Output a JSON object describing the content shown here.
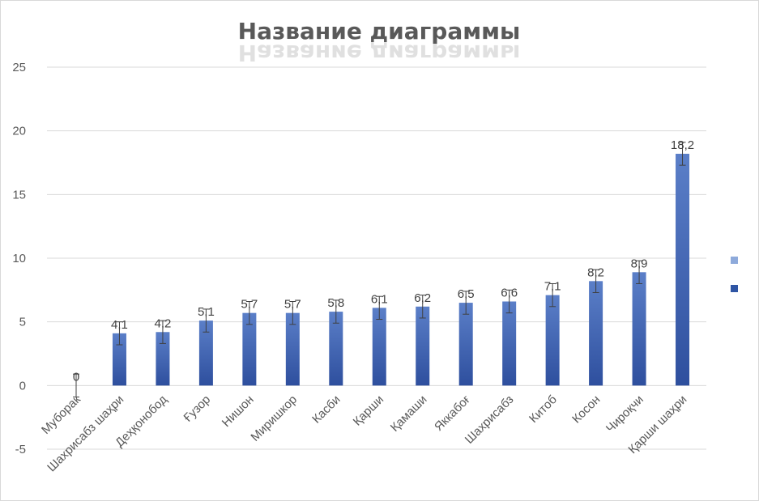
{
  "chart_data": {
    "type": "bar",
    "title": "Название диаграммы",
    "xlabel": "",
    "ylabel": "",
    "ylim": [
      -5,
      25
    ],
    "yticks": [
      -5,
      0,
      5,
      10,
      15,
      20,
      25
    ],
    "grid": true,
    "legend_position": "right",
    "error_bars": true,
    "categories": [
      "Муборак",
      "Шахрисабз шаҳри",
      "Деҳқонобод",
      "Ғузор",
      "Нишон",
      "Миришкор",
      "Касби",
      "Қарши",
      "Қамаши",
      "Яккабоғ",
      "Шахрисабз",
      "Китоб",
      "Косон",
      "Чироқчи",
      "Қарши шаҳри"
    ],
    "series": [
      {
        "values": [
          0,
          4.1,
          4.2,
          5.1,
          5.7,
          5.7,
          5.8,
          6.1,
          6.2,
          6.5,
          6.6,
          7.1,
          8.2,
          8.9,
          18.2
        ],
        "data_labels": [
          "0",
          "4,1",
          "4,2",
          "5,1",
          "5,7",
          "5,7",
          "5,8",
          "6,1",
          "6,2",
          "6,5",
          "6,6",
          "7,1",
          "8,2",
          "8,9",
          "18,2"
        ],
        "error": [
          0.9,
          0.9,
          0.9,
          0.9,
          0.9,
          0.9,
          0.9,
          0.9,
          0.9,
          0.9,
          0.9,
          0.9,
          0.9,
          0.9,
          0.9
        ]
      }
    ],
    "legend_swatches": [
      "#8eaadb",
      "#2f55a4"
    ],
    "colors": {
      "bar_top": "#5b7fc8",
      "bar_bottom": "#2e4f9e",
      "grid": "#d9d9d9",
      "text": "#595959"
    }
  }
}
